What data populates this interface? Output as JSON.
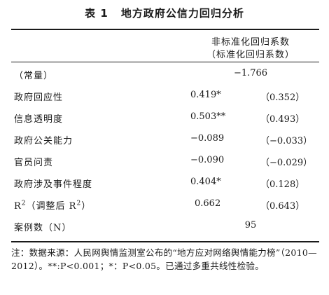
{
  "table": {
    "label": "表 1",
    "title": "地方政府公信力回归分析",
    "column_header_line1": "非标准化回归系数",
    "column_header_line2": "（标准化回归系数）",
    "rows": [
      {
        "variable": "（常量）",
        "coef": "−1.766",
        "std": ""
      },
      {
        "variable": "政府回应性",
        "coef": "0.419*",
        "std": "（0.352）"
      },
      {
        "variable": "信息透明度",
        "coef": "0.503**",
        "std": "（0.493）"
      },
      {
        "variable": "政府公关能力",
        "coef": "−0.089",
        "std": "（−0.033）"
      },
      {
        "variable": "官员问责",
        "coef": "−0.090",
        "std": "（−0.029）"
      },
      {
        "variable": "政府涉及事件程度",
        "coef": "0.404*",
        "std": "（0.128）"
      },
      {
        "variable_prefix": "R",
        "variable_sup": "2",
        "variable_middle": "（调整后 R",
        "variable_sup2": "2",
        "variable_suffix": "）",
        "coef": "0.662",
        "std": "（0.643）"
      },
      {
        "variable": "案例数（N）",
        "coef": "95",
        "std": ""
      }
    ],
    "note": "注：数据来源：人民网舆情监测室公布的“地方应对网络舆情能力榜”（2010—2012）。**:P<0.001；*：P<0.05。已通过多重共线性检验。"
  }
}
